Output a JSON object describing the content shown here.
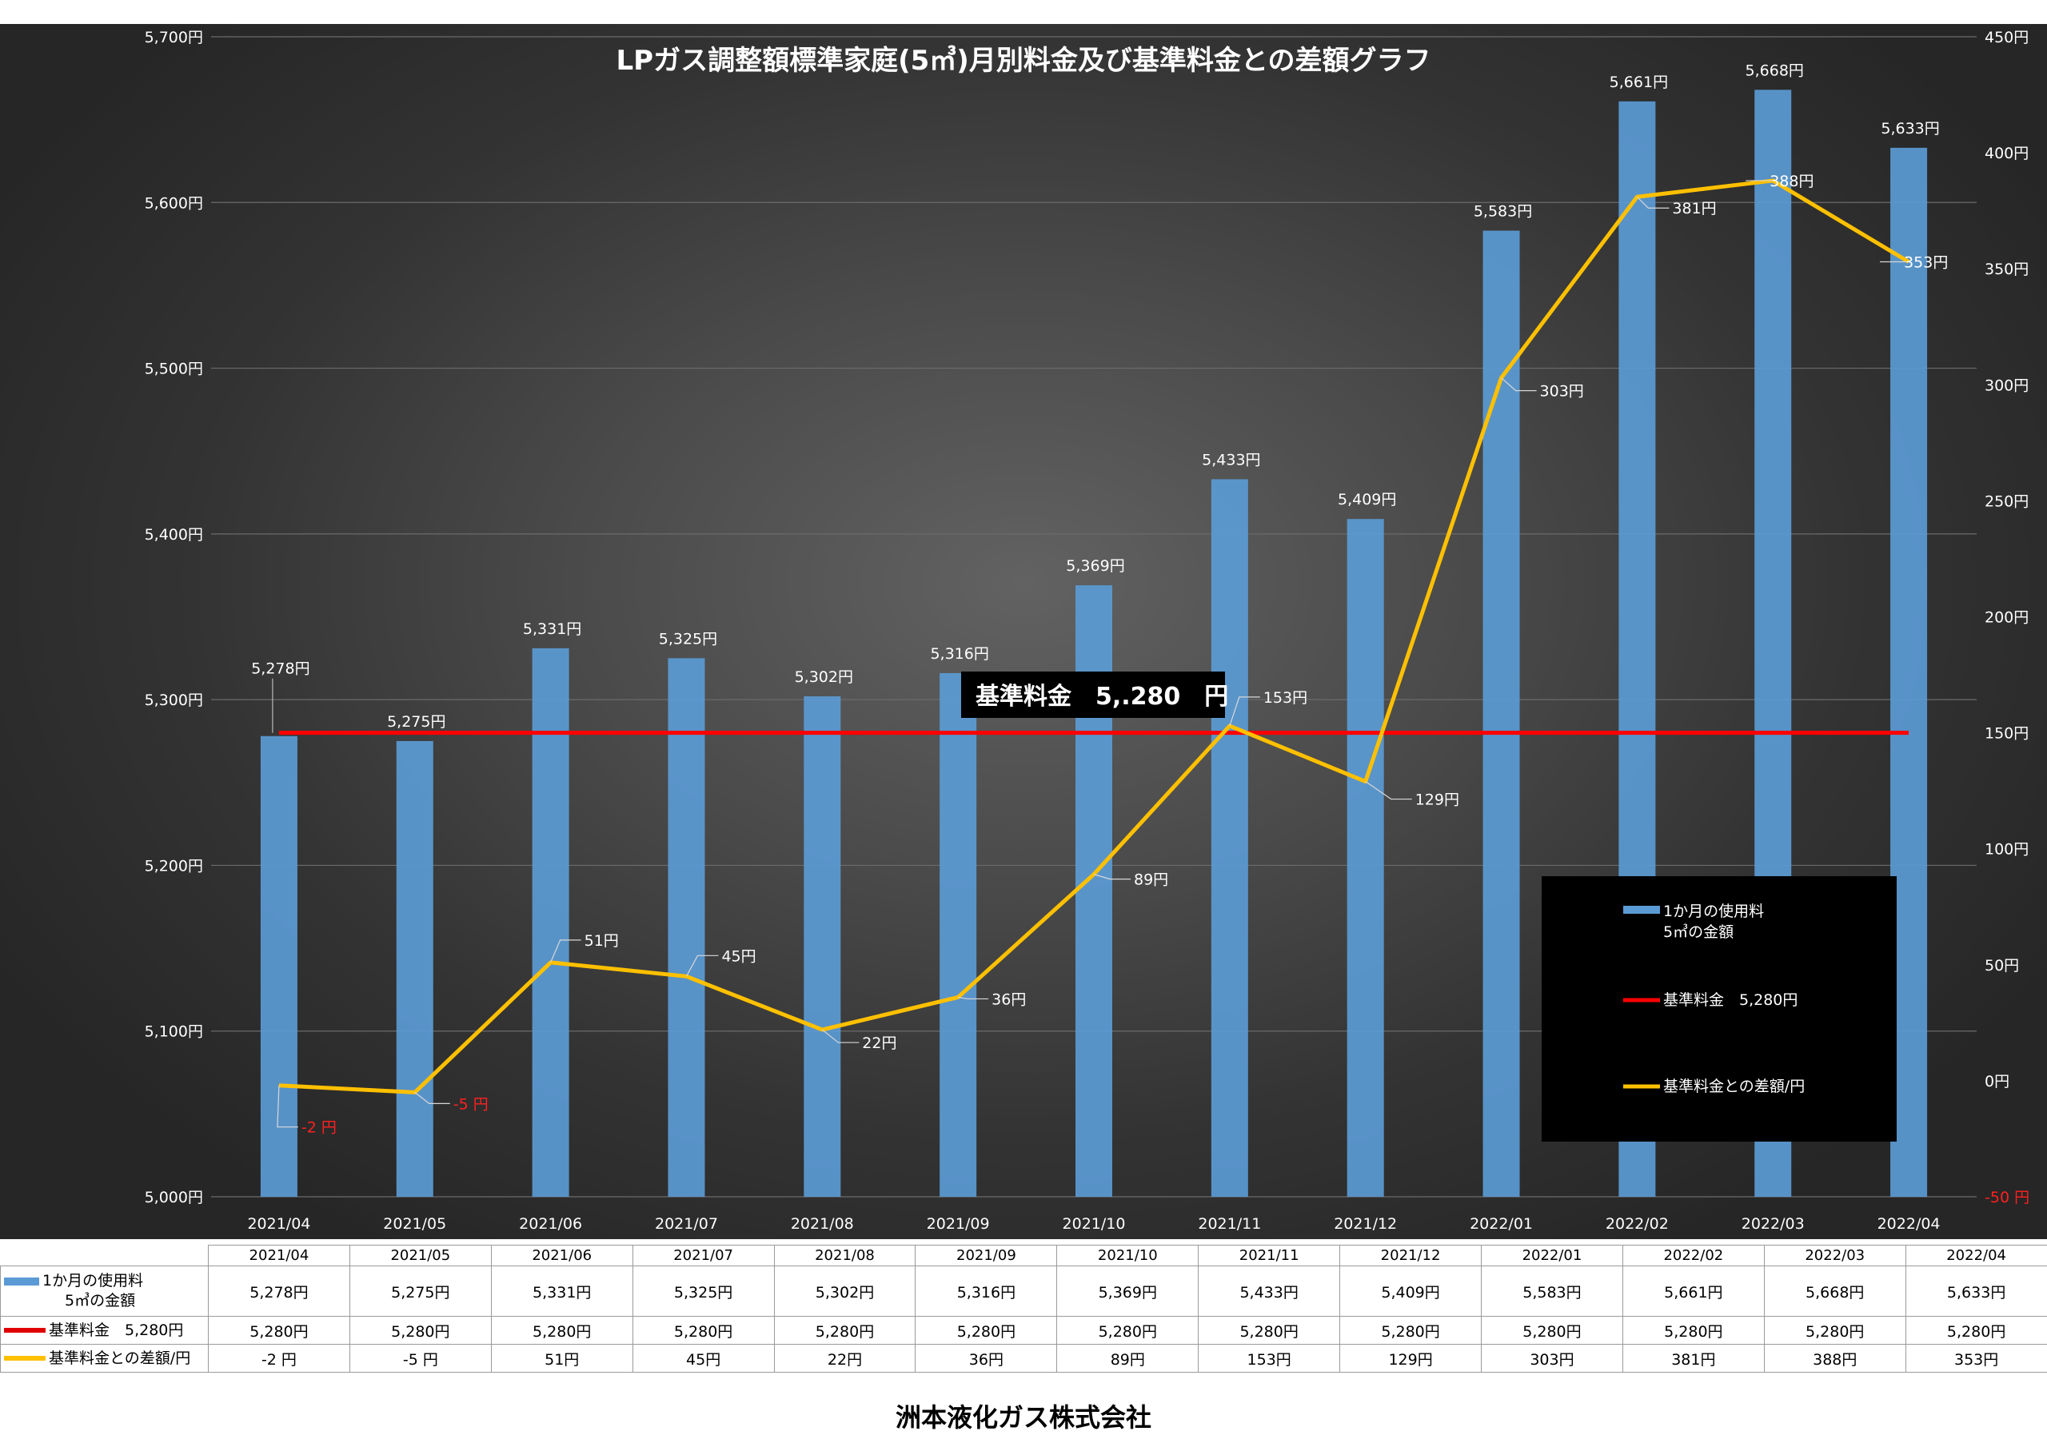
{
  "chart_data": {
    "type": "bar+line",
    "title": "LPガス調整額標準家庭(5㎥)月別料金及び基準料金との差額グラフ",
    "categories": [
      "2021/04",
      "2021/05",
      "2021/06",
      "2021/07",
      "2021/08",
      "2021/09",
      "2021/10",
      "2021/11",
      "2021/12",
      "2022/01",
      "2022/02",
      "2022/03",
      "2022/04"
    ],
    "series": [
      {
        "name": "1か月の使用料 5㎥の金額",
        "type": "bar",
        "axis": "left",
        "color": "#5b9bd5",
        "values": [
          5278,
          5275,
          5331,
          5325,
          5302,
          5316,
          5369,
          5433,
          5409,
          5583,
          5661,
          5668,
          5633
        ],
        "labels": [
          "5,278円",
          "5,275円",
          "5,331円",
          "5,325円",
          "5,302円",
          "5,316円",
          "5,369円",
          "5,433円",
          "5,409円",
          "5,583円",
          "5,661円",
          "5,668円",
          "5,633円"
        ]
      },
      {
        "name": "基準料金 5,280円",
        "type": "line",
        "axis": "left",
        "color": "#ff0000",
        "values": [
          5280,
          5280,
          5280,
          5280,
          5280,
          5280,
          5280,
          5280,
          5280,
          5280,
          5280,
          5280,
          5280
        ],
        "labels": [
          "5,280円",
          "5,280円",
          "5,280円",
          "5,280円",
          "5,280円",
          "5,280円",
          "5,280円",
          "5,280円",
          "5,280円",
          "5,280円",
          "5,280円",
          "5,280円",
          "5,280円"
        ]
      },
      {
        "name": "基準料金との差額/円",
        "type": "line",
        "axis": "right",
        "color": "#ffc000",
        "values": [
          -2,
          -5,
          51,
          45,
          22,
          36,
          89,
          153,
          129,
          303,
          381,
          388,
          353
        ],
        "labels": [
          "-2 円",
          "-5 円",
          "51円",
          "45円",
          "22円",
          "36円",
          "89円",
          "153円",
          "129円",
          "303円",
          "381円",
          "388円",
          "353円"
        ]
      }
    ],
    "y_left": {
      "min": 5000,
      "max": 5700,
      "step": 100,
      "ticks": [
        "5,000円",
        "5,100円",
        "5,200円",
        "5,300円",
        "5,400円",
        "5,500円",
        "5,600円",
        "5,700円"
      ]
    },
    "y_right": {
      "min": -50,
      "max": 450,
      "step": 50,
      "ticks": [
        "-50 円",
        "0円",
        "50円",
        "100円",
        "150円",
        "200円",
        "250円",
        "300円",
        "350円",
        "400円",
        "450円"
      ]
    },
    "grid": true,
    "legend_position": "bottom-right",
    "legend": [
      "1か月の使用料\n5㎥の金額",
      "基準料金　5,280円",
      "基準料金との差額/円"
    ],
    "annotation": "基準料金　5,.280　円",
    "colors": {
      "bar": "#5b9bd5",
      "baseline": "#ff0000",
      "diff": "#ffc000",
      "negative_label": "#ff2020"
    }
  },
  "table": {
    "row_labels": {
      "bar_line1": "1か月の使用料",
      "bar_line2": "5㎥の金額",
      "baseline": "基準料金　5,280円",
      "diff": "基準料金との差額/円"
    }
  },
  "footer": "洲本液化ガス株式会社"
}
